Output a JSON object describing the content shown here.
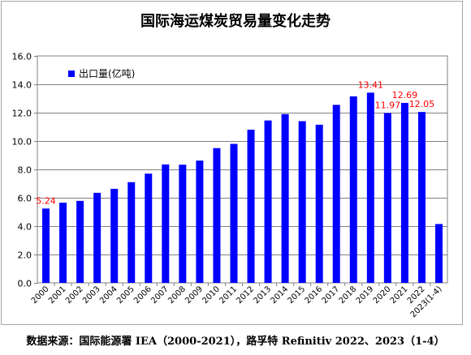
{
  "chart_data": {
    "type": "bar",
    "title": "国际海运煤炭贸易量变化走势",
    "categories": [
      "2000",
      "2001",
      "2002",
      "2003",
      "2004",
      "2005",
      "2006",
      "2007",
      "2008",
      "2009",
      "2010",
      "2011",
      "2012",
      "2013",
      "2014",
      "2015",
      "2016",
      "2017",
      "2018",
      "2019",
      "2020",
      "2021",
      "2022",
      "2023(1-4)"
    ],
    "series": [
      {
        "name": "出口量(亿吨)",
        "values": [
          5.24,
          5.65,
          5.78,
          6.35,
          6.63,
          7.1,
          7.7,
          8.35,
          8.33,
          8.62,
          9.5,
          9.8,
          10.8,
          11.45,
          11.9,
          11.4,
          11.15,
          12.55,
          13.15,
          13.41,
          11.97,
          12.69,
          12.05,
          4.15
        ],
        "color": "#0000ff"
      }
    ],
    "data_labels": [
      {
        "index": 0,
        "text": "5.24"
      },
      {
        "index": 19,
        "text": "13.41"
      },
      {
        "index": 20,
        "text": "11.97"
      },
      {
        "index": 21,
        "text": "12.69"
      },
      {
        "index": 22,
        "text": "12.05"
      }
    ],
    "data_label_color": "#ff0000",
    "ylim": [
      0,
      16
    ],
    "yticks": [
      "0.0",
      "2.0",
      "4.0",
      "6.0",
      "8.0",
      "10.0",
      "12.0",
      "14.0",
      "16.0"
    ],
    "grid": true,
    "legend_position": "top-left",
    "xlabel": "",
    "ylabel": ""
  },
  "source_note": "数据来源：国际能源署 IEA（2000-2021），路孚特 Refinitiv 2022、2023（1-4）"
}
